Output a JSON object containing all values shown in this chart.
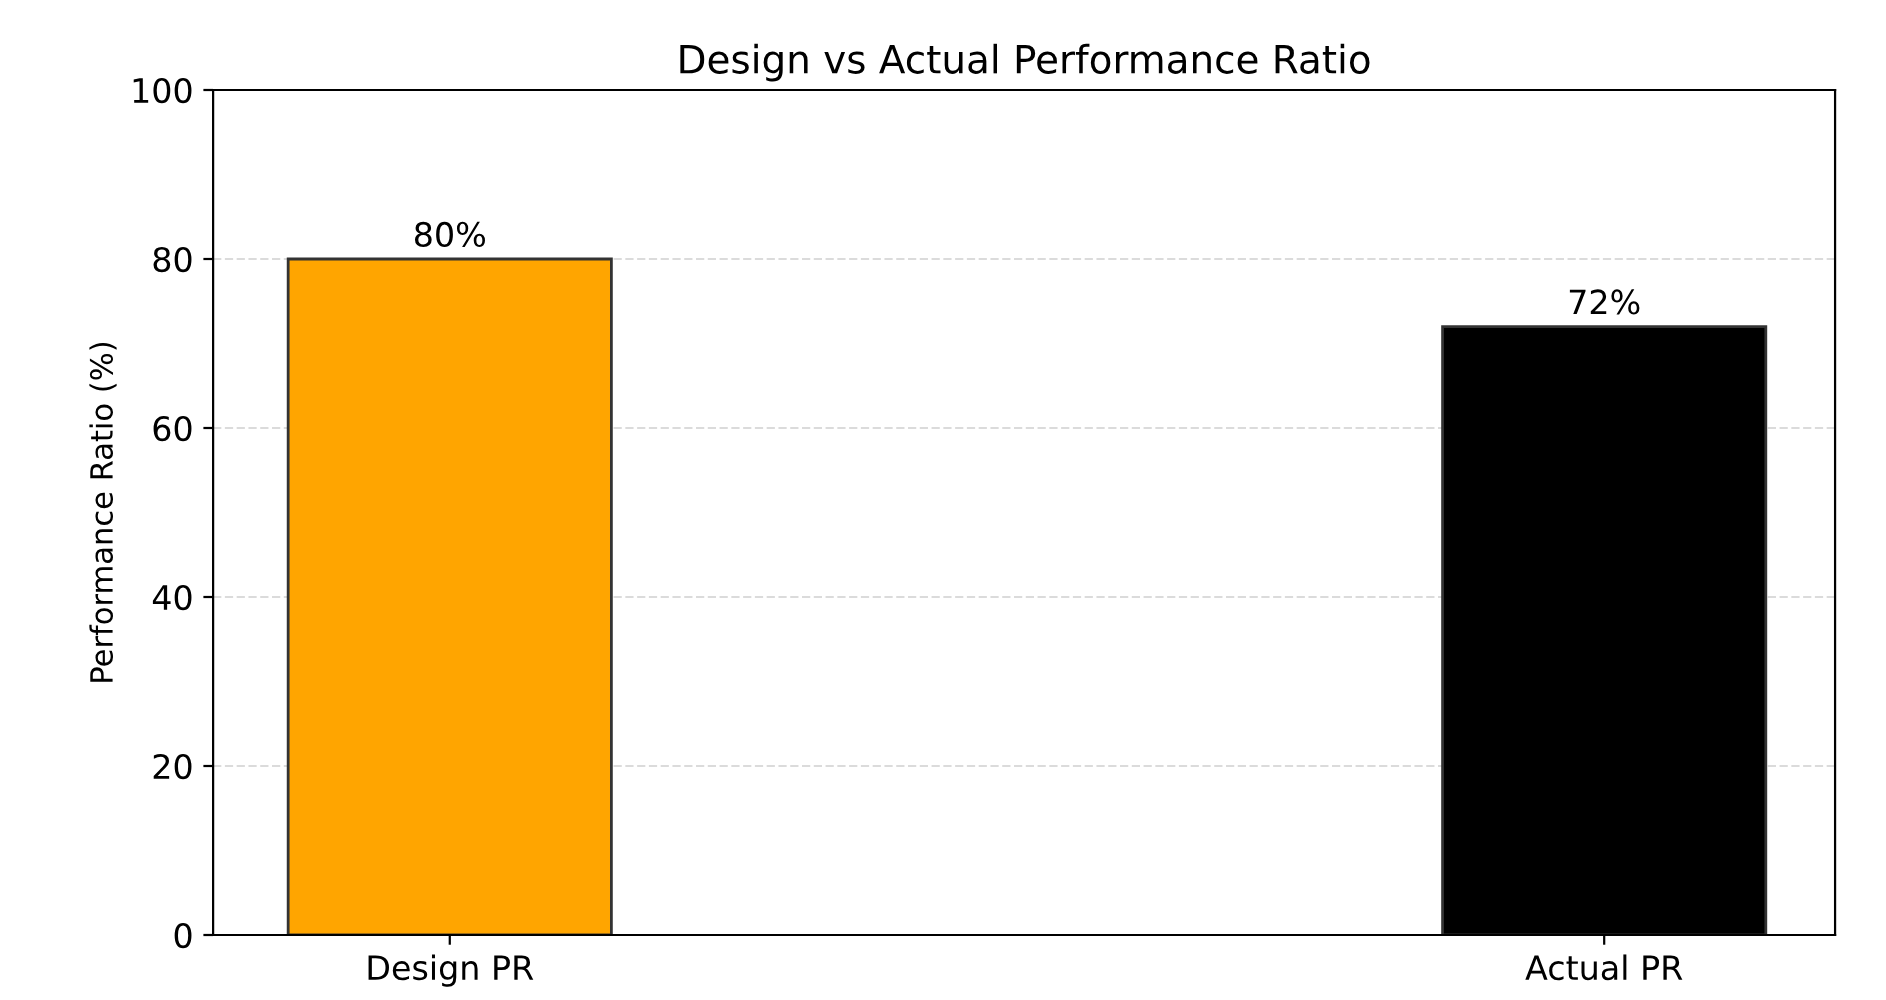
{
  "chart_data": {
    "type": "bar",
    "title": "Design vs Actual Performance Ratio",
    "ylabel": "Performance Ratio (%)",
    "categories": [
      "Design PR",
      "Actual PR"
    ],
    "values": [
      80,
      72
    ],
    "colors": [
      "#ffa500",
      "#000000"
    ],
    "value_labels": [
      "80%",
      "72%"
    ],
    "ylim": [
      0,
      100
    ],
    "yticks": [
      0,
      20,
      40,
      60,
      80,
      100
    ],
    "grid": "y"
  }
}
